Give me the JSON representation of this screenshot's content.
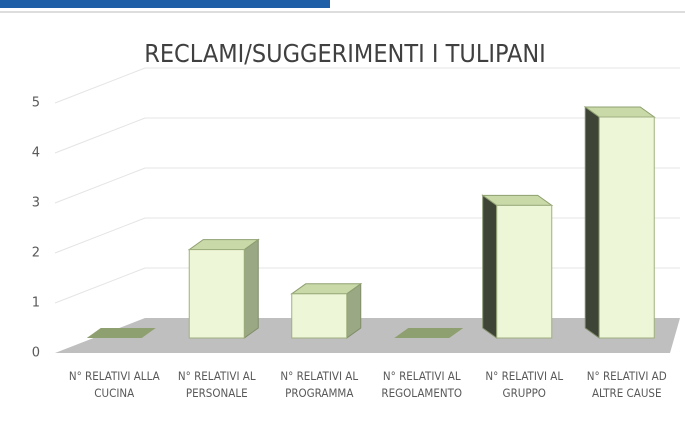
{
  "chart_data": {
    "type": "bar3d",
    "title": "RECLAMI/SUGGERIMENTI I TULIPANI",
    "categories": [
      "N° RELATIVI ALLA CUCINA",
      "N° RELATIVI AL PERSONALE",
      "N° RELATIVI AL PROGRAMMA",
      "N° RELATIVI AL REGOLAMENTO",
      "N° RELATIVI AL GRUPPO",
      "N° RELATIVI AD ALTRE CAUSE"
    ],
    "values": [
      0,
      2,
      1,
      0,
      3,
      5
    ],
    "color": "#eef6d8",
    "ylim": [
      0,
      5
    ],
    "yticks": [
      0,
      1,
      2,
      3,
      4,
      5
    ],
    "grid": true
  }
}
